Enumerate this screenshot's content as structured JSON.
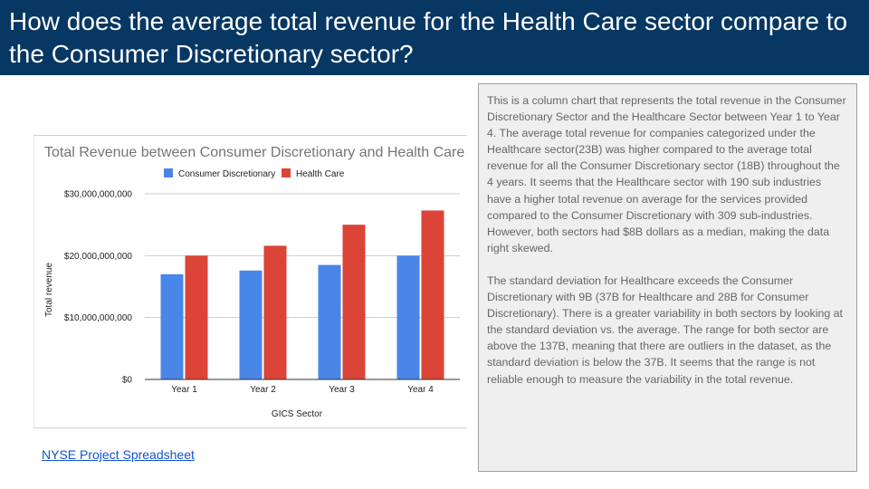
{
  "slide": {
    "title": "How does the average total revenue for the Health Care sector compare to the Consumer Discretionary sector?",
    "link_text": "NYSE Project Spreadsheet",
    "description": [
      "This is a column chart that represents the total revenue in the Consumer Discretionary Sector and the Healthcare Sector between Year 1 to Year 4. The average total revenue for companies categorized under the Healthcare sector(23B) was higher compared to the average total revenue for all the Consumer Discretionary sector (18B) throughout the 4 years. It seems that the Healthcare sector with 190 sub industries have a higher total revenue on average for the services provided compared to the Consumer Discretionary with 309 sub-industries. However, both sectors had $8B dollars as a median, making the data right skewed.",
      "The standard deviation for Healthcare exceeds the Consumer Discretionary with 9B (37B for Healthcare and 28B for Consumer Discretionary). There is a greater variability in both sectors by looking at the standard deviation vs. the average. The range for both sector are above the 137B, meaning that there are outliers in the dataset, as the standard deviation is below the 37B. It seems that the range is not reliable enough to measure the variability in the total revenue."
    ]
  },
  "chart_data": {
    "type": "bar",
    "title": "Total Revenue between Consumer Discretionary and Health Care",
    "xlabel": "GICS Sector",
    "ylabel": "Total revenue",
    "categories": [
      "Year 1",
      "Year 2",
      "Year 3",
      "Year 4"
    ],
    "series": [
      {
        "name": "Consumer Discretionary",
        "color": "#4a86e8",
        "values": [
          17000000000,
          17600000000,
          18500000000,
          20000000000
        ]
      },
      {
        "name": "Health Care",
        "color": "#db4437",
        "values": [
          20000000000,
          21600000000,
          25000000000,
          27300000000
        ]
      }
    ],
    "ylim": [
      0,
      30000000000
    ],
    "yticks": [
      {
        "value": 0,
        "label": "$0"
      },
      {
        "value": 10000000000,
        "label": "$10,000,000,000"
      },
      {
        "value": 20000000000,
        "label": "$20,000,000,000"
      },
      {
        "value": 30000000000,
        "label": "$30,000,000,000"
      }
    ],
    "grid": true,
    "legend": "top-center"
  }
}
